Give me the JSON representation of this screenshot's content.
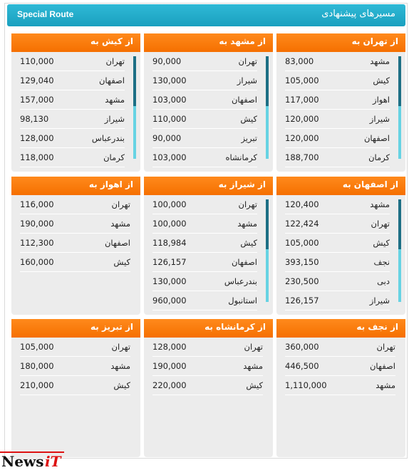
{
  "header": {
    "title": "مسیرهای پیشنهادی",
    "brand": "Special Route"
  },
  "logo": {
    "news": "News",
    "it": "iT"
  },
  "cards": [
    {
      "title": "از تهران به",
      "rows": [
        [
          "مشهد",
          "83,000"
        ],
        [
          "کیش",
          "105,000"
        ],
        [
          "اهواز",
          "117,000"
        ],
        [
          "شیراز",
          "120,000"
        ],
        [
          "اصفهان",
          "120,000"
        ],
        [
          "کرمان",
          "188,700"
        ]
      ],
      "scroll": true
    },
    {
      "title": "از مشهد به",
      "rows": [
        [
          "تهران",
          "90,000"
        ],
        [
          "شیراز",
          "130,000"
        ],
        [
          "اصفهان",
          "103,000"
        ],
        [
          "کیش",
          "110,000"
        ],
        [
          "تبریز",
          "90,000"
        ],
        [
          "کرمانشاه",
          "103,000"
        ]
      ],
      "scroll": true
    },
    {
      "title": "از کیش به",
      "rows": [
        [
          "تهران",
          "110,000"
        ],
        [
          "اصفهان",
          "129,040"
        ],
        [
          "مشهد",
          "157,000"
        ],
        [
          "شیراز",
          "98,130"
        ],
        [
          "بندرعباس",
          "128,000"
        ],
        [
          "کرمان",
          "118,000"
        ]
      ],
      "scroll": true
    },
    {
      "title": "از اصفهان به",
      "rows": [
        [
          "مشهد",
          "120,400"
        ],
        [
          "تهران",
          "122,424"
        ],
        [
          "کیش",
          "105,000"
        ],
        [
          "نجف",
          "393,150"
        ],
        [
          "دبی",
          "230,500"
        ],
        [
          "شیراز",
          "126,157"
        ]
      ],
      "scroll": true
    },
    {
      "title": "از شیراز به",
      "rows": [
        [
          "تهران",
          "100,000"
        ],
        [
          "مشهد",
          "100,000"
        ],
        [
          "کیش",
          "118,984"
        ],
        [
          "اصفهان",
          "126,157"
        ],
        [
          "بندرعباس",
          "130,000"
        ],
        [
          "استانبول",
          "960,000"
        ]
      ],
      "scroll": true
    },
    {
      "title": "از اهواز به",
      "rows": [
        [
          "تهران",
          "116,000"
        ],
        [
          "مشهد",
          "190,000"
        ],
        [
          "اصفهان",
          "112,300"
        ],
        [
          "کیش",
          "160,000"
        ]
      ],
      "scroll": false
    },
    {
      "title": "از نجف به",
      "rows": [
        [
          "تهران",
          "360,000"
        ],
        [
          "اصفهان",
          "446,500"
        ],
        [
          "مشهد",
          "1,110,000"
        ]
      ],
      "scroll": false
    },
    {
      "title": "از کرمانشاه به",
      "rows": [
        [
          "تهران",
          "128,000"
        ],
        [
          "مشهد",
          "190,000"
        ],
        [
          "کیش",
          "220,000"
        ]
      ],
      "scroll": false
    },
    {
      "title": "از تبریز به",
      "rows": [
        [
          "تهران",
          "105,000"
        ],
        [
          "مشهد",
          "180,000"
        ],
        [
          "کیش",
          "210,000"
        ]
      ],
      "scroll": false
    }
  ]
}
